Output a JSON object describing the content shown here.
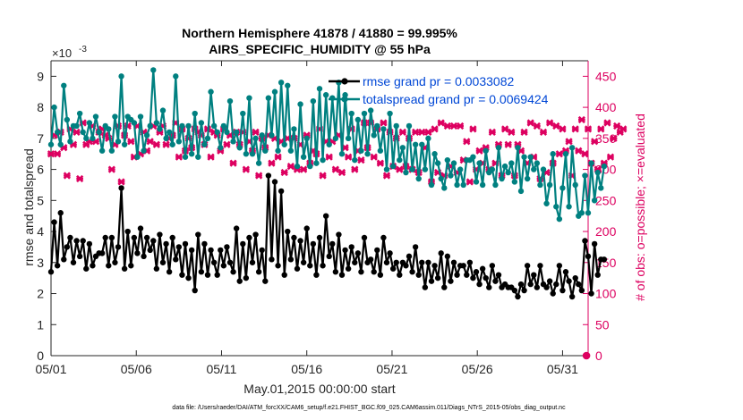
{
  "chart_data": {
    "type": "line",
    "title": [
      "Northern Hemisphere 41878 / 41880 = 99.995%",
      "AIRS_SPECIFIC_HUMIDITY @ 55 hPa"
    ],
    "xlabel": "May.01,2015 00:00:00 start",
    "ylabel_left": "rmse and totalspread",
    "ylabel_right": "# of obs: o=possible; ×=evaluated",
    "left_exponent": "×10",
    "left_exponent_power": "-3",
    "xlim": [
      0,
      31.5
    ],
    "ylim_left": [
      0,
      9.5
    ],
    "ylim_right": [
      0,
      475
    ],
    "x_ticks": [
      0,
      5,
      10,
      15,
      20,
      25,
      30
    ],
    "x_tick_labels": [
      "05/01",
      "05/06",
      "05/11",
      "05/16",
      "05/21",
      "05/26",
      "05/31"
    ],
    "y_left_ticks": [
      0,
      1,
      2,
      3,
      4,
      5,
      6,
      7,
      8,
      9
    ],
    "y_left_tick_labels": [
      "0",
      "1",
      "2",
      "3",
      "4",
      "5",
      "6",
      "7",
      "8",
      "9"
    ],
    "y_right_ticks": [
      0,
      50,
      100,
      150,
      200,
      250,
      300,
      350,
      400,
      450
    ],
    "y_right_tick_labels": [
      "0",
      "50",
      "100",
      "150",
      "200",
      "250",
      "300",
      "350",
      "400",
      "450"
    ],
    "series": [
      {
        "name": "rmse",
        "legend_label": "rmse grand pr = 0.0033082",
        "color": "#000000",
        "axis": "left",
        "values": [
          2.7,
          4.3,
          2.9,
          4.6,
          3.1,
          3.5,
          3.8,
          3.0,
          3.7,
          3.2,
          3.7,
          2.8,
          3.6,
          2.9,
          3.2,
          3.3,
          3.3,
          3.8,
          2.9,
          3.8,
          3.0,
          3.5,
          5.4,
          2.8,
          4.0,
          2.9,
          3.8,
          3.3,
          4.1,
          3.2,
          3.8,
          3.4,
          3.7,
          2.8,
          3.9,
          3.0,
          3.6,
          2.7,
          3.8,
          3.1,
          3.5,
          2.6,
          3.6,
          2.5,
          3.4,
          2.1,
          3.9,
          2.7,
          3.6,
          2.6,
          3.4,
          3.0,
          2.6,
          3.4,
          2.9,
          3.5,
          3.0,
          2.7,
          4.1,
          2.4,
          3.6,
          2.5,
          3.8,
          3.0,
          3.9,
          2.7,
          3.4,
          2.4,
          5.8,
          3.1,
          5.6,
          2.9,
          5.3,
          2.6,
          4.0,
          3.1,
          3.8,
          2.8,
          3.7,
          3.0,
          4.1,
          2.9,
          3.6,
          2.6,
          3.8,
          2.9,
          4.5,
          3.2,
          3.6,
          2.7,
          3.9,
          2.6,
          3.4,
          2.8,
          3.5,
          3.0,
          3.3,
          2.7,
          3.8,
          3.0,
          3.1,
          2.7,
          3.4,
          2.6,
          3.8,
          3.0,
          3.3,
          2.8,
          3.0,
          2.6,
          3.0,
          2.9,
          3.2,
          2.7,
          3.5,
          2.6,
          3.0,
          2.2,
          3.0,
          2.4,
          2.9,
          2.5,
          3.3,
          2.2,
          3.2,
          2.4,
          3.0,
          2.6,
          2.9,
          2.9,
          2.6,
          3.0,
          2.5,
          2.7,
          2.3,
          2.8,
          2.5,
          2.2,
          2.9,
          2.4,
          2.6,
          2.2,
          2.3,
          2.2,
          2.2,
          2.1,
          1.9,
          2.3,
          2.1,
          2.9,
          2.3,
          2.6,
          2.2,
          2.9,
          2.3,
          2.2,
          2.4,
          2.0,
          2.3,
          2.9,
          2.1,
          2.7,
          2.4,
          1.9,
          2.5,
          2.3,
          2.1,
          3.7,
          3.2,
          2.0,
          3.6,
          2.6,
          3.1,
          3.1
        ],
        "x_start": 0,
        "x_step": 0.1875
      },
      {
        "name": "totalspread",
        "legend_label": "totalspread grand pr = 0.0069424",
        "color": "#008080",
        "axis": "left",
        "values": [
          6.8,
          8.0,
          7.2,
          6.8,
          8.7,
          7.6,
          6.9,
          7.4,
          7.4,
          7.8,
          7.2,
          7.0,
          7.5,
          7.0,
          7.7,
          7.2,
          6.6,
          7.4,
          7.3,
          6.6,
          7.7,
          6.9,
          9.0,
          6.8,
          7.7,
          7.6,
          7.5,
          6.4,
          7.7,
          6.6,
          7.1,
          7.4,
          9.2,
          7.5,
          7.3,
          7.9,
          7.0,
          7.2,
          6.8,
          9.0,
          6.9,
          7.4,
          6.4,
          7.4,
          6.5,
          7.8,
          6.4,
          7.5,
          6.8,
          7.0,
          8.5,
          7.4,
          7.2,
          6.7,
          7.4,
          7.2,
          8.2,
          6.9,
          7.2,
          6.7,
          7.8,
          6.5,
          8.3,
          6.5,
          7.0,
          6.2,
          7.1,
          6.6,
          8.3,
          7.1,
          8.5,
          6.6,
          8.8,
          6.8,
          8.7,
          6.6,
          7.3,
          6.1,
          8.1,
          6.4,
          7.0,
          6.1,
          8.2,
          6.2,
          8.6,
          6.3,
          8.4,
          6.8,
          8.3,
          7.0,
          8.8,
          6.5,
          8.4,
          7.0,
          7.8,
          6.3,
          7.6,
          6.6,
          7.8,
          6.5,
          7.9,
          7.1,
          7.4,
          6.6,
          7.3,
          6.0,
          7.8,
          6.1,
          7.4,
          6.3,
          6.7,
          5.9,
          7.4,
          6.0,
          6.8,
          5.7,
          6.8,
          6.0,
          7.0,
          5.5,
          6.5,
          6.2,
          5.7,
          5.4,
          6.3,
          5.8,
          6.2,
          5.5,
          6.0,
          5.5,
          6.3,
          6.3,
          6.4,
          5.6,
          6.2,
          5.5,
          6.6,
          5.9,
          6.0,
          5.5,
          6.7,
          5.7,
          6.1,
          5.9,
          6.2,
          5.6,
          6.7,
          5.3,
          6.4,
          5.7,
          6.4,
          6.0,
          6.2,
          5.5,
          6.0,
          4.9,
          5.5,
          6.5,
          4.8,
          4.4,
          5.4,
          6.5,
          4.8,
          6.7,
          5.5,
          4.5,
          4.6,
          5.8,
          4.6,
          6.2,
          5.0,
          5.9,
          5.4,
          6.1
        ],
        "x_start": 0,
        "x_step": 0.1875
      },
      {
        "name": "obs_possible",
        "legend_label": "",
        "color": "#dd0060",
        "axis": "right",
        "marker": "circle",
        "values": [
          0
        ],
        "x": [
          31.4
        ]
      },
      {
        "name": "obs_evaluated",
        "legend_label": "",
        "color": "#dd0060",
        "axis": "right",
        "marker": "x",
        "values": [
          325,
          355,
          325,
          360,
          335,
          290,
          365,
          340,
          360,
          285,
          375,
          340,
          345,
          370,
          345,
          360,
          365,
          355,
          350,
          300,
          340,
          370,
          280,
          355,
          370,
          345,
          320,
          370,
          325,
          360,
          330,
          345,
          370,
          340,
          360,
          370,
          340,
          350,
          355,
          375,
          320,
          365,
          330,
          350,
          335,
          365,
          360,
          355,
          340,
          365,
          320,
          360,
          355,
          330,
          365,
          340,
          355,
          310,
          360,
          340,
          360,
          300,
          345,
          330,
          360,
          290,
          350,
          335,
          355,
          310,
          350,
          320,
          345,
          295,
          350,
          305,
          350,
          300,
          340,
          300,
          355,
          310,
          330,
          325,
          365,
          290,
          345,
          320,
          345,
          300,
          355,
          295,
          335,
          320,
          365,
          300,
          330,
          315,
          375,
          335,
          375,
          320,
          365,
          310,
          375,
          290,
          360,
          305,
          350,
          300,
          360,
          305,
          350,
          300,
          360,
          295,
          360,
          335,
          360,
          280,
          365,
          295,
          375,
          290,
          370,
          305,
          370,
          295,
          370,
          315,
          345,
          280,
          365,
          300,
          330,
          310,
          335,
          300,
          360,
          310,
          340,
          290,
          365,
          340,
          360,
          290,
          340,
          330,
          360,
          310,
          375,
          320,
          370,
          285,
          360,
          295,
          375,
          310,
          370,
          325,
          365,
          330,
          345,
          290,
          365,
          330,
          380,
          325,
          365,
          310,
          345,
          300,
          365,
          310,
          375,
          320,
          350,
          370,
          360,
          365
        ],
        "x_start": 0,
        "x_step": 0.1875
      }
    ],
    "legend_location": "top-right",
    "grid": false
  },
  "footer": {
    "data_file": "data file: /Users/raeder/DAI/ATM_forcXX/CAM6_setup/f.e21.FHIST_BGC.f09_025.CAM6assim.011/Diags_NTrS_2015-05/obs_diag_output.nc"
  },
  "colors": {
    "rmse": "#000000",
    "totalspread": "#008080",
    "obs": "#dd0060",
    "axis": "#262626",
    "legend_text": "#0047d6"
  }
}
